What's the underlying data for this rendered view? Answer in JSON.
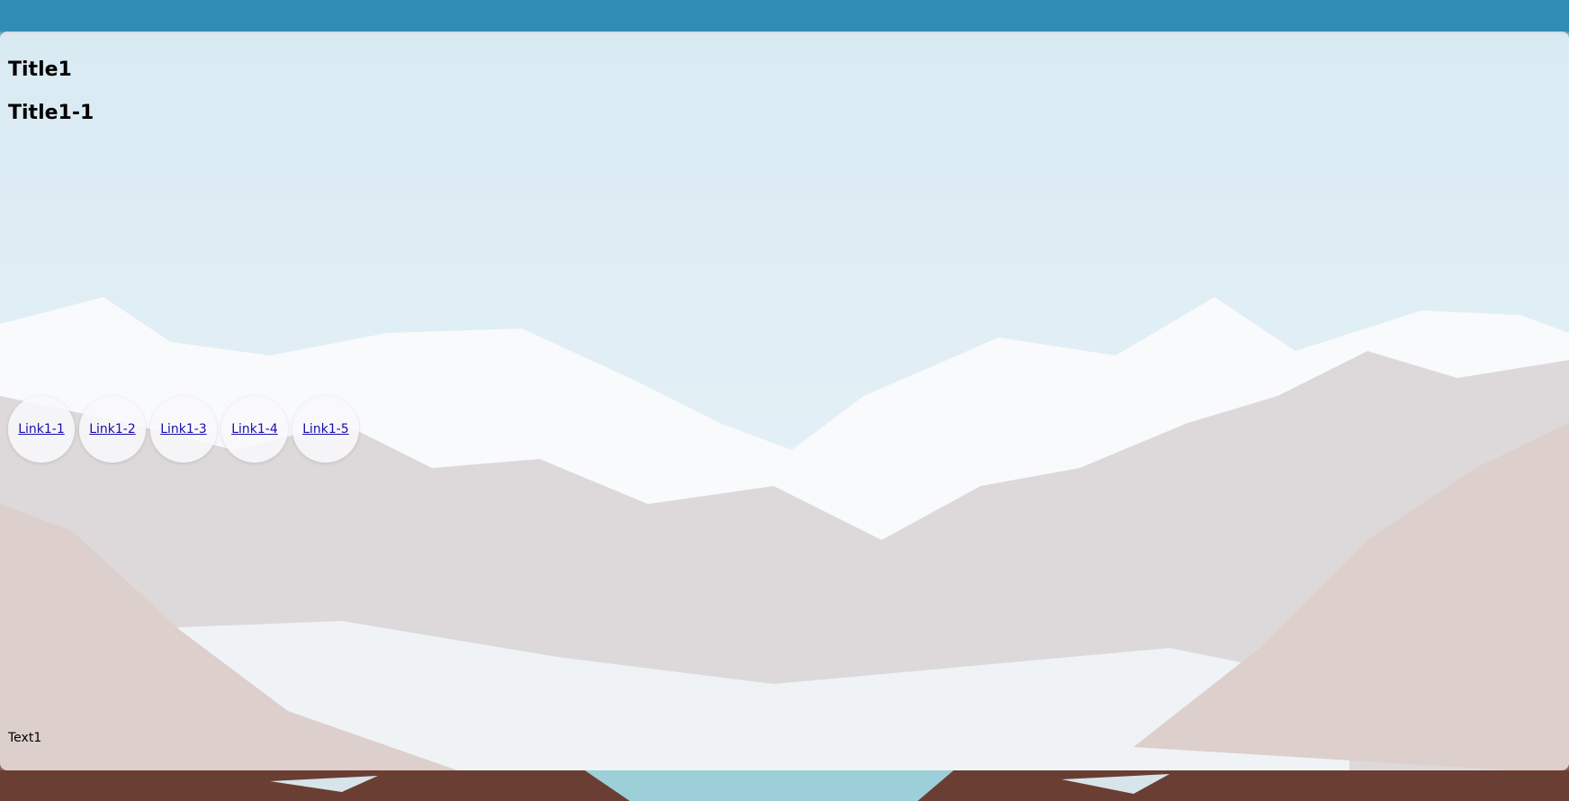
{
  "header": {
    "background_color": "#318cb5"
  },
  "main": {
    "title": "Title1",
    "subtitle": "Title1-1",
    "links": [
      {
        "label": "Link1-1"
      },
      {
        "label": "Link1-2"
      },
      {
        "label": "Link1-3"
      },
      {
        "label": "Link1-4"
      },
      {
        "label": "Link1-5"
      }
    ],
    "footer_text": "Text1"
  },
  "colors": {
    "panel_overlay": "#ffffff",
    "link": "#1a0dab",
    "sky": "#d8e8ee"
  }
}
